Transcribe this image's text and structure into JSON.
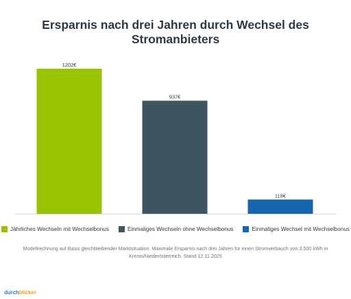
{
  "chart_data": {
    "type": "bar",
    "title": "Ersparnis nach drei Jahren durch Wechsel des Stromanbieters",
    "categories": [
      "Jährliches Wechseln mit Wechselbonus",
      "Einmaliges Wechseln ohne Wechselbonus",
      "Einmaliges Wechsel mit Wechselbonus"
    ],
    "values": [
      1202,
      937,
      118
    ],
    "value_labels": [
      "1202€",
      "937€",
      "118€"
    ],
    "colors": [
      "#99c200",
      "#3d5560",
      "#1565b0"
    ],
    "ylim": [
      0,
      1202
    ],
    "grid": false,
    "legend_position": "bottom"
  },
  "note": "Modellrechnung auf Basis gleichbleibender Marktsituation. Maximale Ersparnis nach drei Jahren für einen Stromverbauch von 3.500 kWh in Krems/Niederösterreich. Stand 12.11.2025",
  "brand": {
    "part1": "durch",
    "part2": "blicker"
  }
}
